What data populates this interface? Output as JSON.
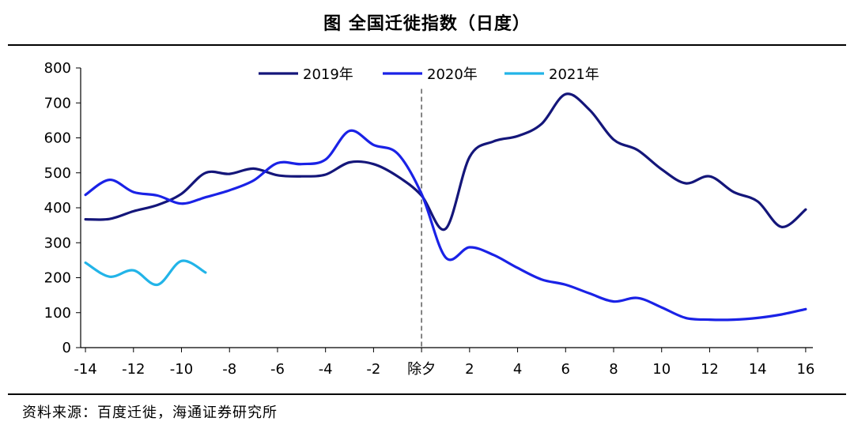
{
  "header": {
    "title": "图 全国迁徙指数（日度）"
  },
  "footer": {
    "source": "资料来源：百度迁徙，海通证券研究所"
  },
  "chart_data": {
    "type": "line",
    "title": "图 全国迁徙指数（日度）",
    "xlabel": "",
    "ylabel": "",
    "xlim": [
      -14.2,
      16.3
    ],
    "ylim": [
      0,
      800
    ],
    "yticks": [
      0,
      100,
      200,
      300,
      400,
      500,
      600,
      700,
      800
    ],
    "xticks": [
      {
        "x": -14,
        "label": "-14"
      },
      {
        "x": -12,
        "label": "-12"
      },
      {
        "x": -10,
        "label": "-10"
      },
      {
        "x": -8,
        "label": "-8"
      },
      {
        "x": -6,
        "label": "-6"
      },
      {
        "x": -4,
        "label": "-4"
      },
      {
        "x": -2,
        "label": "-2"
      },
      {
        "x": 0,
        "label": "除夕"
      },
      {
        "x": 2,
        "label": "2"
      },
      {
        "x": 4,
        "label": "4"
      },
      {
        "x": 6,
        "label": "6"
      },
      {
        "x": 8,
        "label": "8"
      },
      {
        "x": 10,
        "label": "10"
      },
      {
        "x": 12,
        "label": "12"
      },
      {
        "x": 14,
        "label": "14"
      },
      {
        "x": 16,
        "label": "16"
      }
    ],
    "vline": {
      "x": 0,
      "style": "dashed"
    },
    "grid": false,
    "legend_position": "top",
    "series": [
      {
        "name": "2019年",
        "color": "#14167a",
        "x": [
          -14,
          -13,
          -12,
          -11,
          -10,
          -9,
          -8,
          -7,
          -6,
          -5,
          -4,
          -3,
          -2,
          -1,
          0,
          1,
          2,
          3,
          4,
          5,
          6,
          7,
          8,
          9,
          10,
          11,
          12,
          13,
          14,
          15,
          16
        ],
        "values": [
          367,
          368,
          390,
          408,
          440,
          500,
          497,
          512,
          493,
          490,
          495,
          530,
          525,
          490,
          435,
          340,
          545,
          590,
          605,
          640,
          725,
          680,
          595,
          565,
          510,
          470,
          490,
          445,
          418,
          345,
          395
        ]
      },
      {
        "name": "2020年",
        "color": "#1a22e6",
        "x": [
          -14,
          -13,
          -12,
          -11,
          -10,
          -9,
          -8,
          -7,
          -6,
          -5,
          -4,
          -3,
          -2,
          -1,
          0,
          1,
          2,
          3,
          4,
          5,
          6,
          7,
          8,
          9,
          10,
          11,
          12,
          13,
          14,
          15,
          16
        ],
        "values": [
          437,
          480,
          445,
          435,
          412,
          430,
          450,
          478,
          528,
          525,
          538,
          620,
          580,
          555,
          440,
          258,
          287,
          265,
          228,
          195,
          180,
          155,
          132,
          142,
          115,
          85,
          80,
          80,
          85,
          95,
          110
        ]
      },
      {
        "name": "2021年",
        "color": "#22b4e8",
        "x": [
          -14,
          -13,
          -12,
          -11,
          -10,
          -9
        ],
        "values": [
          243,
          203,
          221,
          180,
          248,
          215
        ]
      }
    ]
  }
}
